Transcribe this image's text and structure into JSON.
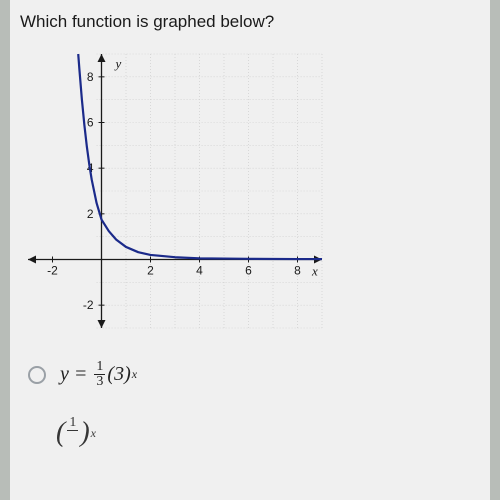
{
  "question": "Which function is graphed below?",
  "chart": {
    "type": "line",
    "background_color": "#f0f0f0",
    "grid_color": "#c9c9c9",
    "axis_color": "#1a1a1a",
    "curve_color": "#1b2a8a",
    "curve_width": 2.2,
    "xlim": [
      -3,
      9
    ],
    "ylim": [
      -3,
      9
    ],
    "xtick_step": 2,
    "ytick_step": 2,
    "xticks": [
      -2,
      2,
      4,
      6,
      8
    ],
    "yticks": [
      -2,
      2,
      4,
      6,
      8
    ],
    "xlabel": "x",
    "ylabel": "y",
    "tick_fontsize": 12,
    "curve_points": [
      [
        -0.95,
        9
      ],
      [
        -0.9,
        8.3
      ],
      [
        -0.8,
        7.0
      ],
      [
        -0.7,
        5.9
      ],
      [
        -0.6,
        4.96
      ],
      [
        -0.5,
        4.17
      ],
      [
        -0.4,
        3.5
      ],
      [
        -0.2,
        2.47
      ],
      [
        0,
        1.75
      ],
      [
        0.3,
        1.24
      ],
      [
        0.6,
        0.87
      ],
      [
        1,
        0.55
      ],
      [
        1.5,
        0.32
      ],
      [
        2,
        0.2
      ],
      [
        3,
        0.1
      ],
      [
        4,
        0.05
      ],
      [
        5,
        0.04
      ],
      [
        6,
        0.03
      ],
      [
        8,
        0.02
      ],
      [
        9,
        0.02
      ]
    ]
  },
  "options": [
    {
      "lhs": "y",
      "coef_num": "1",
      "coef_den": "3",
      "base": "3",
      "exp": "x"
    },
    {
      "coef": "",
      "base_num": "1",
      "exp": "x"
    }
  ]
}
